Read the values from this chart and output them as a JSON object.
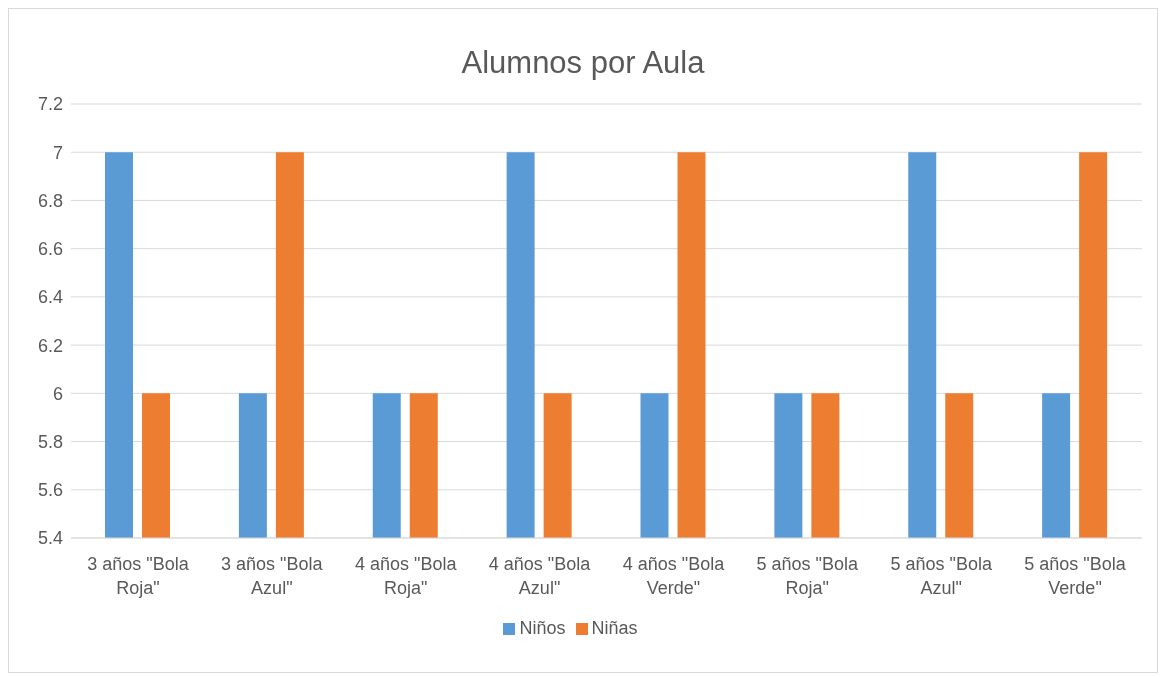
{
  "chart_data": {
    "type": "bar",
    "title": "Alumnos por Aula",
    "categories": [
      "3 años \"Bola Roja\"",
      "3 años \"Bola Azul\"",
      "4 años \"Bola Roja\"",
      "4 años \"Bola Azul\"",
      "4 años \"Bola Verde\"",
      "5 años \"Bola Roja\"",
      "5 años \"Bola Azul\"",
      "5 años \"Bola Verde\""
    ],
    "series": [
      {
        "name": "Niños",
        "color": "#5b9bd5",
        "values": [
          7,
          6,
          6,
          7,
          6,
          6,
          7,
          6
        ]
      },
      {
        "name": "Niñas",
        "color": "#ed7d31",
        "values": [
          6,
          7,
          6,
          6,
          7,
          6,
          6,
          7
        ]
      }
    ],
    "ylim": [
      5.4,
      7.2
    ],
    "yticks": [
      5.4,
      5.6,
      5.8,
      6,
      6.2,
      6.4,
      6.6,
      6.8,
      7,
      7.2
    ],
    "grid": "y",
    "legend": "bottom"
  }
}
